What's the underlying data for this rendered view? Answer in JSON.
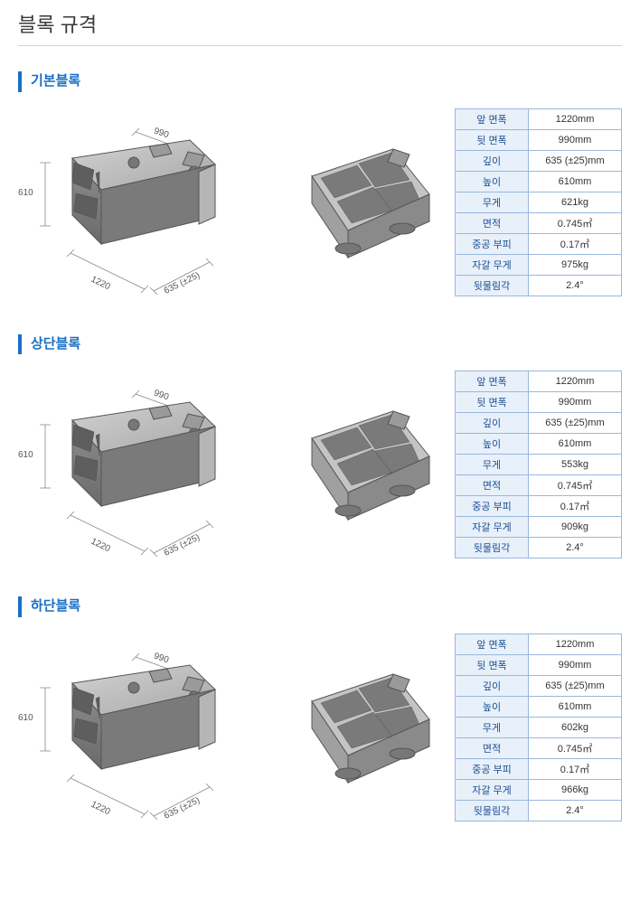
{
  "page_title": "블록 규격",
  "dim_labels": {
    "height": "610",
    "front_width": "1220",
    "depth": "635 (±25)",
    "back_width": "990"
  },
  "spec_keys": [
    "앞 면폭",
    "뒷 면폭",
    "깊이",
    "높이",
    "무게",
    "면적",
    "중공 부피",
    "자갈 무게",
    "뒷물림각"
  ],
  "blocks": [
    {
      "title": "기본블록",
      "specs": [
        "1220mm",
        "990mm",
        "635 (±25)mm",
        "610mm",
        "621kg",
        "0.745㎡",
        "0.17㎥",
        "975kg",
        "2.4°"
      ]
    },
    {
      "title": "상단블록",
      "specs": [
        "1220mm",
        "990mm",
        "635 (±25)mm",
        "610mm",
        "553kg",
        "0.745㎡",
        "0.17㎥",
        "909kg",
        "2.4°"
      ]
    },
    {
      "title": "하단블록",
      "specs": [
        "1220mm",
        "990mm",
        "635 (±25)mm",
        "610mm",
        "602kg",
        "0.745㎡",
        "0.17㎥",
        "966kg",
        "2.4°"
      ]
    }
  ],
  "style": {
    "accent_color": "#1a6fc4",
    "table_border": "#9ab8dc",
    "key_bg": "#e8f0fa",
    "block_fill_light": "#c4c4c4",
    "block_fill_dark": "#8a8a8a",
    "block_stroke": "#555555",
    "texture_fill": "#6f6f6f"
  }
}
